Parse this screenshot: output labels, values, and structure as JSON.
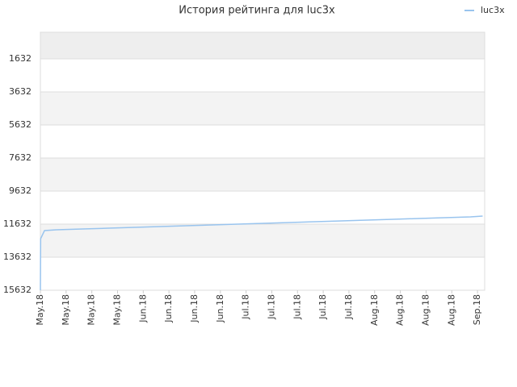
{
  "chart_data": {
    "type": "line",
    "title": "История рейтинга для luc3x",
    "x": [
      0,
      0.01,
      0.16,
      0.63,
      1.64,
      2.64,
      3.65,
      4.65,
      5.66,
      6.67,
      7.67,
      8.68,
      9.69,
      10.69,
      11.7,
      12.7,
      13.71,
      14.72,
      15.72,
      16.73,
      17.2
    ],
    "series": [
      {
        "name": "luc3x",
        "color": "#99c4ee",
        "values": [
          15632,
          12510,
          12022,
          11973,
          11925,
          11876,
          11827,
          11778,
          11730,
          11681,
          11632,
          11583,
          11535,
          11486,
          11437,
          11388,
          11340,
          11290,
          11242,
          11193,
          11144
        ]
      }
    ],
    "xlim": [
      0,
      17.28
    ],
    "xticks": [
      {
        "value": 0,
        "label": "May.18"
      },
      {
        "value": 1,
        "label": "May.18"
      },
      {
        "value": 2,
        "label": "May.18"
      },
      {
        "value": 3,
        "label": "May.18"
      },
      {
        "value": 4,
        "label": "Jun.18"
      },
      {
        "value": 5,
        "label": "Jun.18"
      },
      {
        "value": 6,
        "label": "Jun.18"
      },
      {
        "value": 7,
        "label": "Jun.18"
      },
      {
        "value": 8,
        "label": "Jul.18"
      },
      {
        "value": 9,
        "label": "Jul.18"
      },
      {
        "value": 10,
        "label": "Jul.18"
      },
      {
        "value": 11,
        "label": "Jul.18"
      },
      {
        "value": 12,
        "label": "Jul.18"
      },
      {
        "value": 13,
        "label": "Aug.18"
      },
      {
        "value": 14,
        "label": "Aug.18"
      },
      {
        "value": 15,
        "label": "Aug.18"
      },
      {
        "value": 16,
        "label": "Aug.18"
      },
      {
        "value": 17,
        "label": "Sep.18"
      }
    ],
    "ylim": [
      22,
      15632
    ],
    "y_inverted": true,
    "yticks": [
      1632,
      3632,
      5632,
      7632,
      9632,
      11632,
      13632,
      15632
    ],
    "grid": true,
    "legend": "top-right"
  }
}
